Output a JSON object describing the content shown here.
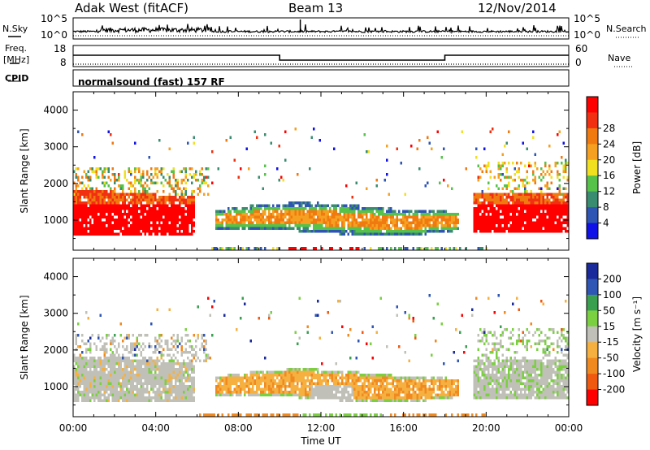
{
  "header": {
    "station": "Adak West (fitACF)",
    "beam": "Beam 13",
    "date": "12/Nov/2014"
  },
  "left_labels": {
    "nsky": "N.Sky",
    "freq_line1": "Freq.",
    "freq_line2": "[MHz]",
    "cpid": "CPID"
  },
  "right_labels": {
    "nsearch": "N.Search",
    "nave": "Nave"
  },
  "noise_panel": {
    "left_top": "10^5",
    "left_bottom": "10^0",
    "right_top": "10^5",
    "right_bottom": "10^0"
  },
  "freq_panel": {
    "left_top": "18",
    "left_bottom": "8",
    "right_top": "60",
    "right_bottom": "0"
  },
  "cpid_text": "normalsound (fast) 157 RF",
  "chart_data": [
    {
      "type": "line",
      "title": "N.Sky / N.Search",
      "ylim_label": [
        "10^0",
        "10^5"
      ],
      "x": [
        "00:00",
        "04:00",
        "08:00",
        "12:00",
        "16:00",
        "20:00",
        "00:00"
      ]
    },
    {
      "type": "line",
      "title": "Freq. [MHz] / Nave",
      "series": [
        {
          "name": "Freq. [MHz]",
          "x_hours": [
            0,
            10,
            10,
            18,
            18,
            24
          ],
          "values": [
            13,
            13,
            10.5,
            10.5,
            13,
            13
          ]
        }
      ],
      "ylim": [
        8,
        18
      ]
    },
    {
      "type": "heatmap",
      "ylabel": "Slant Range [km]",
      "xlabel": "Time UT",
      "x_ticks": [
        "00:00",
        "04:00",
        "08:00",
        "12:00",
        "16:00",
        "20:00",
        "00:00"
      ],
      "y_ticks": [
        "1000",
        "2000",
        "3000",
        "4000"
      ],
      "ylim": [
        180,
        4500
      ],
      "xlim_hours": [
        0,
        24
      ],
      "colorbar_label": "Power [dB]",
      "colorbar_ticks": [
        "4",
        "8",
        "12",
        "16",
        "20",
        "24",
        "28"
      ],
      "colors": [
        "#1010e8",
        "#2e55b3",
        "#3a8c70",
        "#56c24a",
        "#f0e020",
        "#f5a020",
        "#f07a10",
        "#f03010",
        "#ff0000"
      ]
    },
    {
      "type": "heatmap",
      "ylabel": "Slant Range [km]",
      "xlabel": "Time UT",
      "x_ticks": [
        "00:00",
        "04:00",
        "08:00",
        "12:00",
        "16:00",
        "20:00",
        "00:00"
      ],
      "y_ticks": [
        "1000",
        "2000",
        "3000",
        "4000"
      ],
      "ylim": [
        180,
        4500
      ],
      "xlim_hours": [
        0,
        24
      ],
      "colorbar_label": "Velocity [m s⁻¹]",
      "colorbar_ticks": [
        "200",
        "100",
        "50",
        "15",
        "-15",
        "-50",
        "-100",
        "-200"
      ],
      "colors": [
        "#1a2a9a",
        "#2f55b5",
        "#3aa050",
        "#7ad040",
        "#c0c0b8",
        "#f5b040",
        "#f08a20",
        "#f05a10",
        "#ff0000"
      ]
    }
  ]
}
